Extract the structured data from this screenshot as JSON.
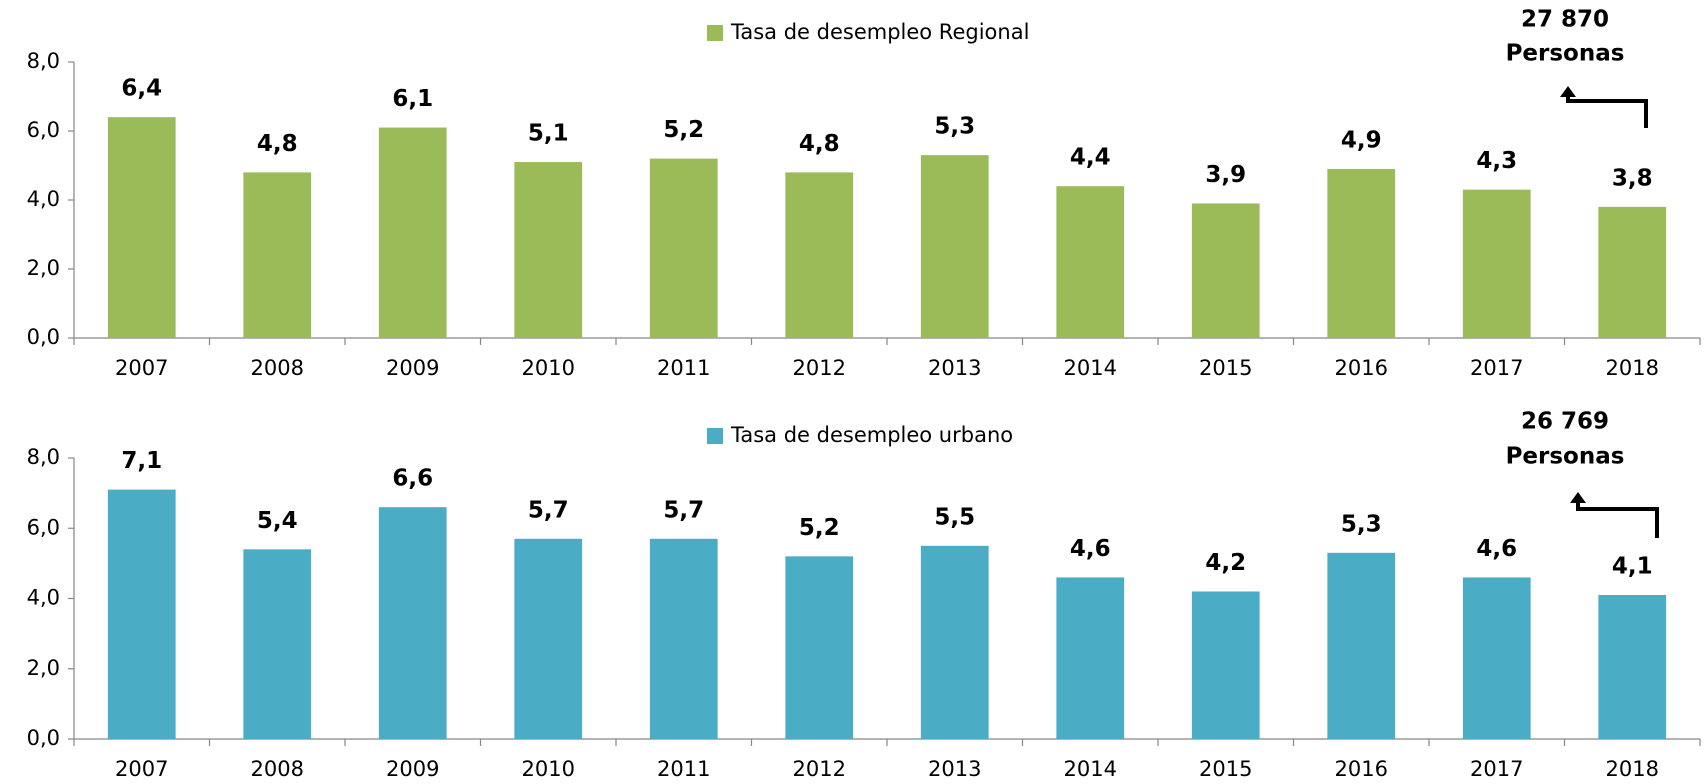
{
  "chart_data": [
    {
      "type": "bar",
      "categories": [
        "2007",
        "2008",
        "2009",
        "2010",
        "2011",
        "2012",
        "2013",
        "2014",
        "2015",
        "2016",
        "2017",
        "2018"
      ],
      "series": [
        {
          "name": "Tasa de desempleo Regional",
          "color": "#9bbb59",
          "values": [
            6.4,
            4.8,
            6.1,
            5.1,
            5.2,
            4.8,
            5.3,
            4.4,
            3.9,
            4.9,
            4.3,
            3.8
          ],
          "value_labels": [
            "6,4",
            "4,8",
            "6,1",
            "5,1",
            "5,2",
            "4,8",
            "5,3",
            "4,4",
            "3,9",
            "4,9",
            "4,3",
            "3,8"
          ]
        }
      ],
      "ylim": [
        0,
        8
      ],
      "yticks": [
        {
          "value": 0,
          "label": "0,0"
        },
        {
          "value": 2,
          "label": "2,0"
        },
        {
          "value": 4,
          "label": "4,0"
        },
        {
          "value": 6,
          "label": "6,0"
        },
        {
          "value": 8,
          "label": "8,0"
        }
      ],
      "legend": "top",
      "annotations": [
        "27 870",
        "Personas"
      ]
    },
    {
      "type": "bar",
      "categories": [
        "2007",
        "2008",
        "2009",
        "2010",
        "2011",
        "2012",
        "2013",
        "2014",
        "2015",
        "2016",
        "2017",
        "2018"
      ],
      "series": [
        {
          "name": "Tasa de desempleo urbano",
          "color": "#4bacc6",
          "values": [
            7.1,
            5.4,
            6.6,
            5.7,
            5.7,
            5.2,
            5.5,
            4.6,
            4.2,
            5.3,
            4.6,
            4.1
          ],
          "value_labels": [
            "7,1",
            "5,4",
            "6,6",
            "5,7",
            "5,7",
            "5,2",
            "5,5",
            "4,6",
            "4,2",
            "5,3",
            "4,6",
            "4,1"
          ]
        }
      ],
      "ylim": [
        0,
        8
      ],
      "yticks": [
        {
          "value": 0,
          "label": "0,0"
        },
        {
          "value": 2,
          "label": "2,0"
        },
        {
          "value": 4,
          "label": "4,0"
        },
        {
          "value": 6,
          "label": "6,0"
        },
        {
          "value": 8,
          "label": "8,0"
        }
      ],
      "legend": "top",
      "annotations": [
        "26 769",
        "Personas"
      ]
    }
  ]
}
